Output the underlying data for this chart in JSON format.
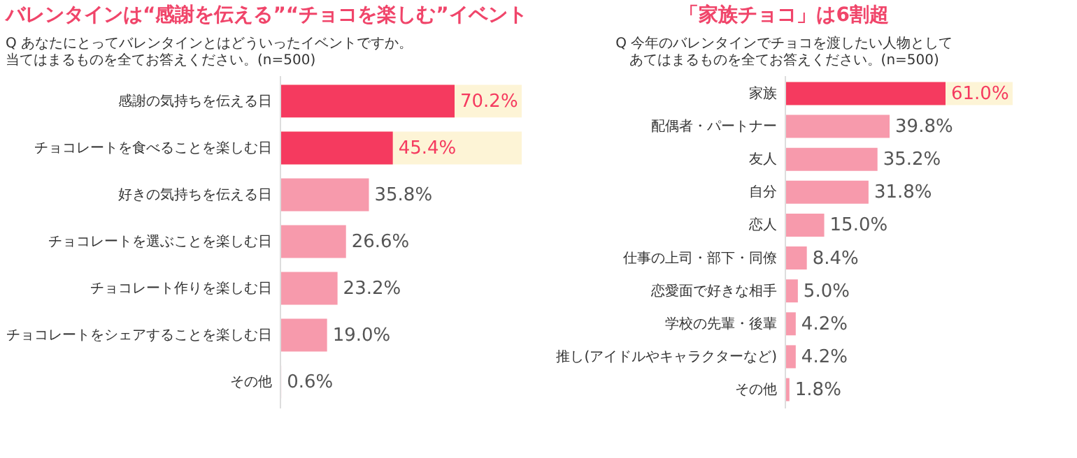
{
  "chart_data": [
    {
      "type": "bar",
      "orientation": "horizontal",
      "title": "バレンタインは“感謝を伝える”“チョコを楽しむ”イベント",
      "subtitle": "Q あなたにとってバレンタインとはどういったイベントですか。当てはまるものを全てお答えください。(n=500)",
      "categories": [
        "感謝の気持ちを伝える日",
        "チョコレートを食べることを楽しむ日",
        "好きの気持ちを伝える日",
        "チョコレートを選ぶことを楽しむ日",
        "チョコレート作りを楽しむ日",
        "チョコレートをシェアすることを楽しむ日",
        "その他"
      ],
      "values": [
        70.2,
        45.4,
        35.8,
        26.6,
        23.2,
        19.0,
        0.6
      ],
      "value_labels": [
        "70.2%",
        "45.4%",
        "35.8%",
        "26.6%",
        "23.2%",
        "19.0%",
        "0.6%"
      ],
      "colors": [
        "#f53a5f",
        "#f53a5f",
        "#f79aac",
        "#f79aac",
        "#f79aac",
        "#f79aac",
        "#f79aac"
      ],
      "bands": [
        {
          "axis": "y",
          "from": "感謝の気持ちを伝える日",
          "to": "チョコレートを食べることを楽しむ日",
          "color": "#fdf4d6"
        }
      ]
    },
    {
      "type": "bar",
      "orientation": "horizontal",
      "title": "「家族チョコ」は6割超",
      "subtitle": "Q 今年のバレンタインでチョコを渡したい人物としてあてはまるものを全てお答えください。(n=500)",
      "categories": [
        "家族",
        "配偶者・パートナー",
        "友人",
        "自分",
        "恋人",
        "仕事の上司・部下・同僚",
        "恋愛面で好きな相手",
        "学校の先輩・後輩",
        "推し(アイドルやキャラクターなど)",
        "その他"
      ],
      "values": [
        61.0,
        39.8,
        35.2,
        31.8,
        15.0,
        8.4,
        5.0,
        4.2,
        4.2,
        1.8
      ],
      "value_labels": [
        "61.0%",
        "39.8%",
        "35.2%",
        "31.8%",
        "15.0%",
        "8.4%",
        "5.0%",
        "4.2%",
        "4.2%",
        "1.8%"
      ],
      "colors": [
        "#f53a5f",
        "#f79aac",
        "#f79aac",
        "#f79aac",
        "#f79aac",
        "#f79aac",
        "#f79aac",
        "#f79aac",
        "#f79aac",
        "#f79aac"
      ],
      "bands": [
        {
          "axis": "y",
          "from": "家族",
          "to": "家族",
          "color": "#fdf4d6"
        }
      ]
    }
  ]
}
